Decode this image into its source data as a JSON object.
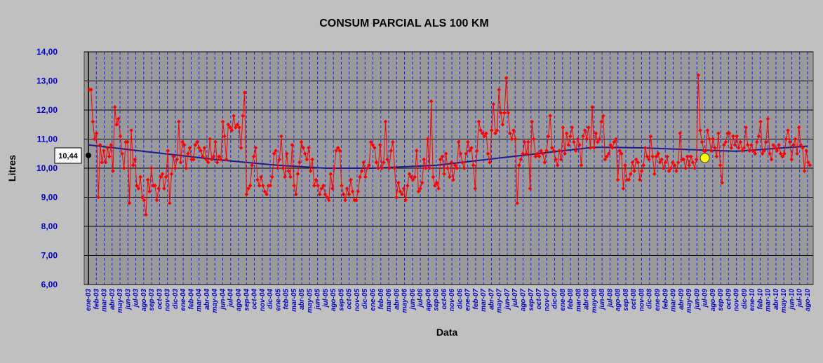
{
  "chart_data": {
    "type": "line",
    "title": "CONSUM PARCIAL ALS 100 KM",
    "xlabel": "Data",
    "ylabel": "Litres",
    "ylim": [
      6,
      14
    ],
    "y_ticks": [
      "6,00",
      "7,00",
      "8,00",
      "9,00",
      "10,00",
      "11,00",
      "12,00",
      "13,00",
      "14,00"
    ],
    "grid": true,
    "background_color": "#c0c0c0",
    "plot_color": "#9a9a9a",
    "series_color": "#ff0000",
    "trend_color": "#1c1c8c",
    "tick_label_color": "#0000cc",
    "marker_value_label": "10,44",
    "highlight_point": {
      "x": "jul-09",
      "y": 10.35,
      "color": "#ffff00"
    },
    "x_labels": [
      "ene-03",
      "feb-03",
      "mar-03",
      "abr-03",
      "may-03",
      "jun-03",
      "jul-03",
      "ago-03",
      "sep-03",
      "oct-03",
      "nov-03",
      "dic-03",
      "ene-04",
      "feb-04",
      "mar-04",
      "abr-04",
      "may-04",
      "jun-04",
      "jul-04",
      "ago-04",
      "sep-04",
      "oct-04",
      "nov-04",
      "dic-04",
      "ene-05",
      "feb-05",
      "mar-05",
      "abr-05",
      "may-05",
      "jun-05",
      "jul-05",
      "ago-05",
      "sep-05",
      "oct-05",
      "nov-05",
      "dic-05",
      "ene-06",
      "feb-06",
      "mar-06",
      "abr-06",
      "may-06",
      "jun-06",
      "jul-06",
      "ago-06",
      "sep-06",
      "oct-06",
      "nov-06",
      "dic-06",
      "ene-07",
      "feb-07",
      "mar-07",
      "abr-07",
      "may-07",
      "jun-07",
      "jul-07",
      "ago-07",
      "sep-07",
      "oct-07",
      "nov-07",
      "dic-07",
      "ene-08",
      "feb-08",
      "mar-08",
      "abr-08",
      "may-08",
      "jun-08",
      "jul-08",
      "ago-08",
      "sep-08",
      "oct-08",
      "nov-08",
      "dic-08",
      "ene-09",
      "feb-09",
      "mar-09",
      "abr-09",
      "may-09",
      "jun-09",
      "jul-09",
      "ago-09",
      "sep-09",
      "oct-09",
      "nov-09",
      "dic-09",
      "ene-10",
      "feb-10",
      "mar-10",
      "abr-10",
      "may-10",
      "jun-10",
      "jul-10",
      "ago-10"
    ],
    "series": [
      {
        "name": "",
        "values": [
          12.7,
          12.7,
          11.6,
          11.0,
          11.2,
          9.0,
          10.8,
          10.2,
          10.6,
          10.2,
          10.7,
          10.4,
          10.8,
          9.9,
          12.1,
          11.5,
          11.7,
          11.1,
          10.5,
          10.0,
          10.9,
          10.9,
          8.8,
          11.3,
          10.1,
          10.3,
          9.4,
          9.3,
          9.7,
          9.0,
          8.9,
          8.4,
          9.6,
          9.2,
          10.0,
          9.4,
          9.4,
          8.9,
          9.3,
          9.7,
          9.8,
          9.3,
          9.7,
          10.6,
          8.8,
          9.8,
          10.4,
          10.0,
          10.3,
          11.6,
          10.2,
          10.9,
          10.8,
          10.0,
          10.5,
          10.7,
          10.3,
          10.3,
          10.8,
          10.9,
          10.7,
          10.6,
          10.4,
          10.7,
          10.3,
          10.2,
          11.0,
          10.3,
          10.4,
          10.9,
          10.2,
          10.4,
          10.3,
          11.6,
          11.1,
          10.3,
          11.5,
          11.4,
          11.3,
          11.8,
          11.4,
          11.5,
          11.4,
          10.7,
          11.8,
          12.6,
          9.1,
          9.3,
          9.4,
          10.1,
          10.4,
          10.7,
          9.6,
          9.4,
          9.7,
          9.4,
          9.2,
          9.1,
          9.4,
          9.4,
          9.7,
          10.5,
          10.6,
          10.0,
          10.3,
          11.1,
          10.0,
          9.7,
          10.5,
          9.9,
          9.7,
          10.8,
          9.4,
          9.1,
          9.8,
          10.2,
          10.9,
          10.7,
          10.5,
          10.3,
          10.7,
          9.9,
          10.3,
          9.4,
          9.6,
          9.4,
          9.1,
          9.3,
          9.4,
          9.1,
          9.0,
          8.9,
          9.8,
          9.3,
          10.0,
          10.6,
          10.7,
          10.6,
          9.4,
          9.1,
          8.9,
          9.3,
          9.1,
          9.6,
          9.2,
          8.9,
          8.9,
          9.2,
          9.7,
          9.9,
          10.2,
          9.7,
          10.0,
          10.1,
          10.9,
          10.8,
          10.7,
          10.2,
          10.0,
          10.8,
          10.0,
          10.2,
          11.6,
          10.3,
          10.0,
          10.6,
          10.9,
          10.0,
          9.0,
          9.5,
          9.2,
          9.1,
          9.3,
          8.9,
          9.4,
          9.8,
          9.7,
          9.6,
          9.7,
          10.6,
          9.2,
          9.3,
          9.5,
          10.3,
          10.0,
          11.0,
          10.0,
          12.3,
          9.7,
          9.4,
          9.5,
          9.3,
          10.3,
          10.4,
          9.8,
          10.5,
          10.0,
          9.7,
          10.2,
          9.6,
          10.1,
          10.0,
          10.9,
          10.5,
          10.2,
          10.0,
          10.5,
          10.9,
          10.6,
          10.7,
          10.1,
          9.3,
          10.6,
          11.6,
          11.3,
          11.2,
          11.1,
          11.2,
          10.5,
          10.2,
          11.3,
          12.2,
          11.2,
          11.3,
          12.7,
          11.9,
          11.5,
          11.9,
          13.1,
          11.9,
          11.2,
          11.0,
          11.3,
          11.0,
          8.8,
          10.1,
          10.3,
          10.5,
          10.9,
          10.5,
          10.9,
          9.3,
          11.6,
          11.0,
          10.4,
          10.5,
          10.4,
          10.6,
          10.5,
          10.2,
          10.6,
          11.1,
          11.8,
          10.7,
          10.6,
          10.3,
          10.1,
          10.6,
          10.3,
          11.4,
          10.5,
          11.2,
          10.8,
          11.1,
          11.4,
          10.9,
          10.6,
          11.0,
          10.8,
          10.1,
          11.1,
          11.3,
          11.0,
          11.4,
          10.7,
          12.1,
          10.7,
          11.2,
          10.9,
          11.0,
          11.6,
          11.8,
          10.3,
          10.4,
          10.5,
          10.8,
          10.7,
          10.9,
          11.0,
          9.6,
          10.6,
          10.5,
          9.3,
          10.1,
          9.6,
          9.6,
          9.8,
          10.2,
          9.9,
          10.3,
          10.2,
          9.6,
          9.9,
          10.1,
          10.7,
          10.4,
          10.3,
          11.1,
          10.4,
          9.8,
          10.4,
          10.5,
          10.2,
          10.3,
          10.0,
          10.2,
          10.4,
          9.9,
          10.0,
          10.2,
          10.1,
          9.9,
          10.2,
          11.2,
          10.3,
          10.3,
          10.0,
          10.4,
          10.1,
          10.4,
          10.2,
          10.0,
          10.3,
          13.2,
          11.3,
          10.9,
          10.6,
          10.6,
          11.3,
          11.0,
          10.6,
          11.0,
          10.7,
          10.4,
          11.2,
          10.1,
          9.5,
          10.8,
          10.9,
          11.2,
          11.2,
          10.7,
          11.1,
          10.8,
          11.1,
          10.7,
          10.9,
          10.6,
          10.7,
          11.4,
          10.8,
          10.6,
          10.8,
          10.6,
          10.5,
          10.9,
          11.1,
          11.6,
          10.5,
          10.6,
          10.9,
          11.7,
          10.5,
          10.3,
          10.8,
          10.7,
          10.6,
          10.8,
          10.5,
          10.4,
          10.5,
          11.0,
          11.3,
          10.9,
          10.3,
          10.8,
          11.0,
          10.5,
          11.4,
          10.8,
          10.7,
          9.9,
          10.6,
          10.2,
          10.1
        ]
      },
      {
        "name": "",
        "type": "trend",
        "points": [
          [
            0,
            10.8
          ],
          [
            8,
            10.55
          ],
          [
            16,
            10.3
          ],
          [
            24,
            10.1
          ],
          [
            30,
            10.0
          ],
          [
            36,
            10.0
          ],
          [
            44,
            10.1
          ],
          [
            52,
            10.35
          ],
          [
            60,
            10.6
          ],
          [
            64,
            10.72
          ],
          [
            70,
            10.7
          ],
          [
            78,
            10.62
          ],
          [
            82,
            10.58
          ],
          [
            91,
            10.76
          ]
        ]
      }
    ]
  }
}
